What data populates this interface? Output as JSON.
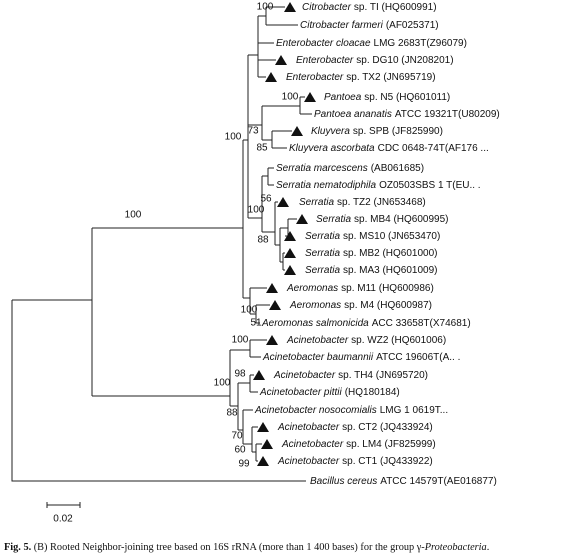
{
  "leaves": [
    {
      "italic": "Citrobacter",
      "text": "sp. TI (HQ600991)"
    },
    {
      "italic": "Citrobacter farmeri",
      "text": "(AF025371)"
    },
    {
      "italic": "Enterobacter cloacae",
      "text": "LMG 2683T(Z96079)"
    },
    {
      "italic": "Enterobacter",
      "text": "sp. DG10 (JN208201)"
    },
    {
      "italic": "Enterobacter",
      "text": "sp. TX2 (JN695719)"
    },
    {
      "italic": "Pantoea",
      "text": "sp. N5 (HQ601011)"
    },
    {
      "italic": "Pantoea ananatis",
      "text": "ATCC 19321T(U80209)"
    },
    {
      "italic": "Kluyvera",
      "text": "sp. SPB (JF825990)"
    },
    {
      "italic": "Kluyvera ascorbata",
      "text": "CDC 0648-74T(AF176 ..."
    },
    {
      "italic": "Serratia marcescens",
      "text": "(AB061685)"
    },
    {
      "italic": "Serratia nematodiphila",
      "text": "OZ0503SBS 1 T(EU.. ."
    },
    {
      "italic": "Serratia",
      "text": "sp. TZ2 (JN653468)"
    },
    {
      "italic": "Serratia",
      "text": "sp. MB4 (HQ600995)"
    },
    {
      "italic": "Serratia",
      "text": "sp. MS10 (JN653470)"
    },
    {
      "italic": "Serratia",
      "text": "sp. MB2 (HQ601000)"
    },
    {
      "italic": "Serratia",
      "text": "sp. MA3 (HQ601009)"
    },
    {
      "italic": "Aeromonas",
      "text": "sp. M11 (HQ600986)"
    },
    {
      "italic": "Aeromonas",
      "text": "sp. M4 (HQ600987)"
    },
    {
      "italic": "Aeromonas salmonicida",
      "text": "ACC 33658T(X74681)"
    },
    {
      "italic": "Acinetobacter",
      "text": "sp. WZ2 (HQ601006)"
    },
    {
      "italic": "Acinetobacter baumannii",
      "text": "ATCC 19606T(A.. ."
    },
    {
      "italic": "Acinetobacter",
      "text": "sp. TH4 (JN695720)"
    },
    {
      "italic": "Acinetobacter pittii",
      "text": "(HQ180184)"
    },
    {
      "italic": "Acinetobacter nosocomialis",
      "text": "LMG 1 0619T..."
    },
    {
      "italic": "Acinetobacter",
      "text": "sp. CT2 (JQ433924)"
    },
    {
      "italic": "Acinetobacter",
      "text": "sp. LM4 (JF825999)"
    },
    {
      "italic": "Acinetobacter",
      "text": "sp. CT1 (JQ433922)"
    },
    {
      "italic": "Bacillus cereus",
      "text": "ATCC 14579T(AE016877)"
    }
  ],
  "bootstrap": [
    "100",
    "100",
    "73",
    "85",
    "100",
    "56",
    "100",
    "88",
    "100",
    "100",
    "51",
    "100",
    "98",
    "100",
    "88",
    "70",
    "60",
    "99"
  ],
  "scale_bar": "0.02",
  "caption": {
    "label": "Fig. 5.",
    "text": "(B) Rooted Neighbor-joining tree based on 16S rRNA (more than 1 400 bases) for the group γ-",
    "italic": "Proteobacteria",
    "end": "."
  }
}
